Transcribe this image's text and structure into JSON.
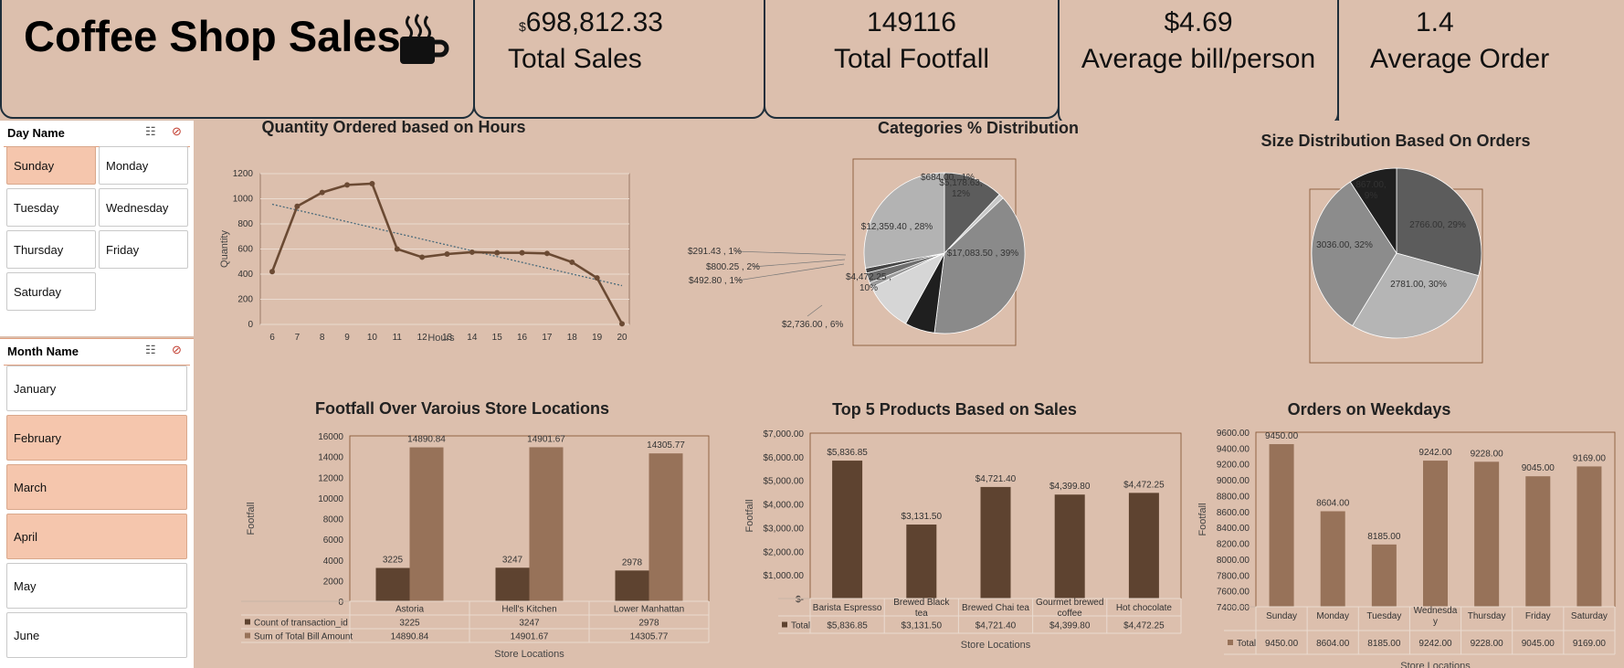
{
  "header": {
    "title": "Coffee Shop Sales",
    "icon": "coffee-cup-icon",
    "kpis": [
      {
        "currency": "$",
        "value": "698,812.33",
        "label": "Total Sales"
      },
      {
        "value": "149116",
        "label": "Total Footfall"
      },
      {
        "value": "$4.69",
        "label": "Average bill/person"
      },
      {
        "value": "1.4",
        "label": "Average Order"
      }
    ]
  },
  "slicers": {
    "day": {
      "title": "Day Name",
      "items": [
        {
          "label": "Sunday",
          "selected": true
        },
        {
          "label": "Monday",
          "selected": false
        },
        {
          "label": "Tuesday",
          "selected": false
        },
        {
          "label": "Wednesday",
          "selected": false
        },
        {
          "label": "Thursday",
          "selected": false
        },
        {
          "label": "Friday",
          "selected": false
        },
        {
          "label": "Saturday",
          "selected": false
        }
      ]
    },
    "month": {
      "title": "Month Name",
      "items": [
        {
          "label": "January",
          "selected": false
        },
        {
          "label": "February",
          "selected": true
        },
        {
          "label": "March",
          "selected": true
        },
        {
          "label": "April",
          "selected": true
        },
        {
          "label": "May",
          "selected": false
        },
        {
          "label": "June",
          "selected": false
        }
      ]
    }
  },
  "colors": {
    "background": "#dcbfad",
    "dark_brown": "#5e4330",
    "light_brown": "#977259",
    "line_brown": "#6b4a33",
    "trendline": "#4a6a7a",
    "selected": "#f5c6ad"
  },
  "chart_data": [
    {
      "type": "line",
      "title": "Quantity Ordered based on Hours",
      "xlabel": "Hours",
      "ylabel": "Quantity",
      "x": [
        6,
        7,
        8,
        9,
        10,
        11,
        12,
        13,
        14,
        15,
        16,
        17,
        18,
        19,
        20
      ],
      "values": [
        420,
        940,
        1050,
        1110,
        1120,
        600,
        535,
        560,
        575,
        570,
        570,
        565,
        495,
        370,
        5
      ],
      "ylim": [
        0,
        1200
      ],
      "yticks": [
        0,
        200,
        400,
        600,
        800,
        1000,
        1200
      ],
      "trendline": "linear",
      "grid": true
    },
    {
      "type": "pie",
      "title": "Categories % Distribution",
      "slices": [
        {
          "label": "$5,178.63, 12%",
          "value": 12,
          "color": "#5c5c5c"
        },
        {
          "label": "$684.00 , 1%",
          "value": 1,
          "color": "#c8c8c8"
        },
        {
          "label": "$17,083.50 , 39%",
          "value": 39,
          "color": "#8a8a8a"
        },
        {
          "label": "$2,736.00 , 6%",
          "value": 6,
          "color": "#1f1f1f"
        },
        {
          "label": "$4,472.25 , 10%",
          "value": 10,
          "color": "#d6d6d6"
        },
        {
          "label": "$492.80 , 1%",
          "value": 1,
          "color": "#9a9a9a"
        },
        {
          "label": "$800.25 , 2%",
          "value": 2,
          "color": "#6e6e6e"
        },
        {
          "label": "$291.43 , 1%",
          "value": 1,
          "color": "#444444"
        },
        {
          "label": "$12,359.40 , 28%",
          "value": 28,
          "color": "#b3b3b3"
        }
      ]
    },
    {
      "type": "pie",
      "title": "Size Distribution Based On Orders",
      "slices": [
        {
          "label": "2766.00, 29%",
          "value": 2766,
          "color": "#5c5c5c"
        },
        {
          "label": "2781.00, 30%",
          "value": 2781,
          "color": "#b5b5b5"
        },
        {
          "label": "3036.00, 32%",
          "value": 3036,
          "color": "#8c8c8c"
        },
        {
          "label": "867.00, 9%",
          "value": 867,
          "color": "#1f1f1f"
        }
      ]
    },
    {
      "type": "bar",
      "title": "Footfall Over Varoius Store Locations",
      "xlabel": "Store Locations",
      "ylabel": "Footfall",
      "categories": [
        "Astoria",
        "Hell's Kitchen",
        "Lower Manhattan"
      ],
      "series": [
        {
          "name": "Count of transaction_id",
          "values": [
            3225,
            3247,
            2978
          ],
          "labels": [
            "3225",
            "3247",
            "2978"
          ],
          "color": "#5e4330"
        },
        {
          "name": "Sum of Total Bill Amount",
          "values": [
            14890.84,
            14901.67,
            14305.77
          ],
          "labels": [
            "14890.84",
            "14901.67",
            "14305.77"
          ],
          "color": "#977259"
        }
      ],
      "ylim": [
        0,
        16000
      ],
      "yticks": [
        0,
        2000,
        4000,
        6000,
        8000,
        10000,
        12000,
        14000,
        16000
      ]
    },
    {
      "type": "bar",
      "title": "Top 5 Products Based on Sales",
      "xlabel": "Store Locations",
      "ylabel": "Footfall",
      "categories": [
        "Barista Espresso",
        "Brewed Black tea",
        "Brewed Chai tea",
        "Gourmet brewed coffee",
        "Hot chocolate"
      ],
      "series": [
        {
          "name": "Total",
          "values": [
            5836.85,
            3131.5,
            4721.4,
            4399.8,
            4472.25
          ],
          "labels": [
            "$5,836.85",
            "$3,131.50",
            "$4,721.40",
            "$4,399.80",
            "$4,472.25"
          ],
          "color": "#5e4330"
        }
      ],
      "ylim": [
        0,
        7000
      ],
      "yticks": [
        "$-",
        "$1,000.00",
        "$2,000.00",
        "$3,000.00",
        "$4,000.00",
        "$5,000.00",
        "$6,000.00",
        "$7,000.00"
      ]
    },
    {
      "type": "bar",
      "title": "Orders on Weekdays",
      "xlabel": "Store Locations",
      "ylabel": "Footfall",
      "categories": [
        "Sunday",
        "Monday",
        "Tuesday",
        "Wednesday",
        "Thursday",
        "Friday",
        "Saturday"
      ],
      "series": [
        {
          "name": "Total",
          "values": [
            9450,
            8604,
            8185,
            9242,
            9228,
            9045,
            9169
          ],
          "labels": [
            "9450.00",
            "8604.00",
            "8185.00",
            "9242.00",
            "9228.00",
            "9045.00",
            "9169.00"
          ],
          "color": "#977259"
        }
      ],
      "ylim": [
        7400,
        9600
      ],
      "yticks": [
        "7400.00",
        "7600.00",
        "7800.00",
        "8000.00",
        "8200.00",
        "8400.00",
        "8600.00",
        "8800.00",
        "9000.00",
        "9200.00",
        "9400.00",
        "9600.00"
      ]
    }
  ]
}
